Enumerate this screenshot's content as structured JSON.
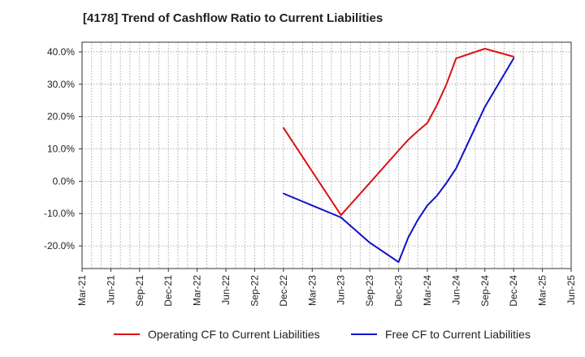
{
  "title": "[4178]  Trend of Cashflow Ratio to Current Liabilities",
  "colors": {
    "operating": "#dd1111",
    "free": "#1111cc",
    "grid": "#999999",
    "axis": "#333333"
  },
  "chart_data": {
    "type": "line",
    "title": "[4178]  Trend of Cashflow Ratio to Current Liabilities",
    "xlabel": "",
    "ylabel": "",
    "grid": true,
    "legend_position": "bottom",
    "x_tick_labels": [
      "Mar-21",
      "Jun-21",
      "Sep-21",
      "Dec-21",
      "Mar-22",
      "Jun-22",
      "Sep-22",
      "Dec-22",
      "Mar-23",
      "Jun-23",
      "Sep-23",
      "Dec-23",
      "Mar-24",
      "Jun-24",
      "Sep-24",
      "Dec-24",
      "Mar-25",
      "Jun-25"
    ],
    "y_ticks": [
      -20,
      -10,
      0,
      10,
      20,
      30,
      40
    ],
    "y_tick_labels": [
      "-20.0%",
      "-10.0%",
      "0.0%",
      "10.0%",
      "20.0%",
      "30.0%",
      "40.0%"
    ],
    "ylim": [
      -27,
      43
    ],
    "series": [
      {
        "name": "Operating CF to Current Liabilities",
        "color": "#dd1111",
        "x": [
          "Dec-22",
          "Jun-23",
          "Sep-23",
          "Dec-23",
          "Jan-24",
          "Feb-24",
          "Mar-24",
          "Apr-24",
          "May-24",
          "Jun-24",
          "Sep-24",
          "Dec-24"
        ],
        "values": [
          16.5,
          -10.5,
          -0.5,
          9.5,
          12.8,
          15.5,
          18.0,
          23.5,
          30.0,
          38.0,
          41.0,
          38.5
        ]
      },
      {
        "name": "Free CF to Current Liabilities",
        "color": "#1111cc",
        "x": [
          "Dec-22",
          "Jun-23",
          "Sep-23",
          "Dec-23",
          "Jan-24",
          "Feb-24",
          "Mar-24",
          "Apr-24",
          "May-24",
          "Jun-24",
          "Sep-24",
          "Dec-24"
        ],
        "values": [
          -3.8,
          -11.2,
          -19.0,
          -25.0,
          -17.5,
          -12.0,
          -7.5,
          -4.5,
          -0.5,
          4.0,
          23.0,
          38.0
        ]
      }
    ]
  },
  "legend": {
    "operating_label": "Operating CF to Current Liabilities",
    "free_label": "Free CF to Current Liabilities"
  }
}
